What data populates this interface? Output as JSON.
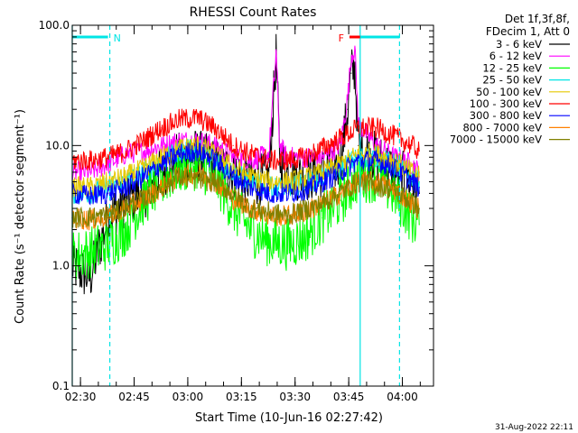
{
  "chart_data": {
    "type": "line",
    "title": "RHESSI Count Rates",
    "xlabel": "Start Time (10-Jun-16 02:27:42)",
    "ylabel": "Count Rate (s⁻¹ detector segment⁻¹)",
    "yscale": "log",
    "ylim": [
      0.1,
      100.0
    ],
    "xlim_minutes_after_0227_42": [
      0,
      101
    ],
    "y_ticks": [
      "100.0",
      "10.0",
      "1.0",
      "0.1"
    ],
    "x_ticks": [
      "02:30",
      "02:45",
      "03:00",
      "03:15",
      "03:30",
      "03:45",
      "04:00"
    ],
    "x_tick_minutes": [
      2.3,
      17.3,
      32.3,
      47.3,
      62.3,
      77.3,
      92.3
    ],
    "legend_position": "right",
    "legend_header": [
      "Det 1f,3f,8f,",
      "FDecim 1, Att 0"
    ],
    "series": [
      {
        "name": "3 - 6 keV",
        "color": "#000000",
        "x": [
          0,
          5,
          10,
          15,
          20,
          25,
          30,
          35,
          40,
          45,
          50,
          55,
          57,
          58,
          60,
          65,
          70,
          75,
          77,
          78,
          79,
          80,
          85,
          90,
          95,
          97
        ],
        "y": [
          1.0,
          0.8,
          2.5,
          3.5,
          4.0,
          6.0,
          8.0,
          8.5,
          7.0,
          6.0,
          5.0,
          5.5,
          55,
          8,
          6,
          5.5,
          6,
          7,
          20,
          40,
          45,
          10,
          8,
          6,
          5,
          4
        ]
      },
      {
        "name": "6 - 12 keV",
        "color": "#ff00ff",
        "x": [
          0,
          5,
          10,
          15,
          20,
          25,
          30,
          35,
          40,
          45,
          50,
          55,
          57,
          58,
          60,
          65,
          70,
          75,
          77,
          78,
          79,
          80,
          85,
          90,
          95,
          97
        ],
        "y": [
          6.0,
          6.0,
          7.0,
          8.5,
          9.0,
          10.0,
          11.0,
          11.0,
          10.0,
          8.0,
          7.5,
          8.5,
          60,
          10,
          8,
          8,
          8,
          10,
          25,
          55,
          65,
          15,
          10,
          8,
          7,
          6
        ]
      },
      {
        "name": "12 - 25 keV",
        "color": "#00ff00",
        "x": [
          0,
          5,
          10,
          15,
          20,
          25,
          30,
          35,
          40,
          45,
          50,
          55,
          60,
          65,
          70,
          75,
          80,
          85,
          90,
          95,
          97
        ],
        "y": [
          1.2,
          1.3,
          1.5,
          2.0,
          3.5,
          5.0,
          6.5,
          7.0,
          5.5,
          3.0,
          2.0,
          1.6,
          1.5,
          1.7,
          2.5,
          3.5,
          5.5,
          5.5,
          4.0,
          2.5,
          2.2
        ]
      },
      {
        "name": "25 - 50 keV",
        "color": "#00e5e5",
        "x": [
          0,
          5,
          10,
          15,
          20,
          25,
          30,
          35,
          40,
          45,
          50,
          55,
          60,
          65,
          70,
          75,
          80,
          85,
          90,
          95,
          97
        ],
        "y": [
          4.0,
          4.0,
          4.5,
          5.0,
          6.0,
          7.5,
          9.0,
          9.5,
          8.0,
          6.0,
          5.0,
          4.5,
          4.5,
          4.8,
          5.5,
          6.5,
          8.0,
          8.0,
          7.0,
          5.5,
          5.0
        ]
      },
      {
        "name": "50 - 100 keV",
        "color": "#e5c800",
        "x": [
          0,
          5,
          10,
          15,
          20,
          25,
          30,
          35,
          40,
          45,
          50,
          55,
          60,
          65,
          70,
          75,
          80,
          85,
          90,
          95,
          97
        ],
        "y": [
          4.5,
          4.5,
          5.0,
          5.5,
          6.5,
          8.0,
          9.5,
          10.0,
          8.5,
          6.5,
          5.5,
          5.0,
          5.0,
          5.3,
          6.0,
          7.0,
          8.5,
          8.5,
          7.5,
          6.0,
          5.5
        ]
      },
      {
        "name": "100 - 300 keV",
        "color": "#ff0000",
        "x": [
          0,
          5,
          10,
          15,
          20,
          25,
          30,
          35,
          40,
          45,
          50,
          55,
          60,
          65,
          70,
          75,
          80,
          85,
          90,
          95,
          97
        ],
        "y": [
          7.5,
          7.5,
          8.0,
          9.0,
          11.0,
          14.0,
          16.5,
          17.0,
          14.0,
          10.0,
          8.5,
          7.5,
          7.5,
          8.0,
          9.5,
          11.5,
          14.0,
          14.0,
          12.0,
          10.0,
          9.0
        ]
      },
      {
        "name": "300 - 800 keV",
        "color": "#0000ff",
        "x": [
          0,
          5,
          10,
          15,
          20,
          25,
          30,
          35,
          40,
          45,
          50,
          55,
          60,
          65,
          70,
          75,
          80,
          85,
          90,
          95,
          97
        ],
        "y": [
          4.0,
          3.8,
          4.0,
          4.5,
          5.5,
          7.0,
          8.5,
          9.0,
          7.5,
          5.5,
          4.5,
          4.0,
          4.0,
          4.3,
          5.0,
          6.0,
          7.5,
          7.5,
          6.5,
          5.0,
          4.5
        ]
      },
      {
        "name": "800 - 7000 keV",
        "color": "#ff8000",
        "x": [
          0,
          5,
          10,
          15,
          20,
          25,
          30,
          35,
          40,
          45,
          50,
          55,
          60,
          65,
          70,
          75,
          80,
          85,
          90,
          95,
          97
        ],
        "y": [
          2.5,
          2.4,
          2.6,
          3.0,
          3.6,
          4.5,
          5.5,
          6.0,
          5.0,
          3.6,
          3.0,
          2.6,
          2.6,
          2.8,
          3.3,
          4.0,
          5.0,
          5.0,
          4.3,
          3.3,
          3.0
        ]
      },
      {
        "name": "7000 - 15000 keV",
        "color": "#808000",
        "x": [
          0,
          10,
          20,
          30,
          40,
          50,
          60,
          70,
          80,
          90,
          97
        ],
        "y": [
          2.5,
          2.6,
          3.6,
          5.5,
          5.0,
          3.0,
          2.6,
          3.3,
          5.0,
          4.3,
          3.0
        ]
      }
    ],
    "annotations": [
      {
        "label": "N",
        "color": "#00e5e5",
        "x_start": 0,
        "x_end": 10
      },
      {
        "label": "F",
        "color": "#ff0000",
        "x_start": 77.5,
        "x_end": 80.5
      },
      {
        "label": "",
        "color": "#00e5e5",
        "x_start": 80.5,
        "x_end": 91.5
      }
    ],
    "vlines": [
      {
        "x": 0,
        "style": "solid",
        "color": "#00e5e5"
      },
      {
        "x": 10.5,
        "style": "dashed",
        "color": "#00e5e5"
      },
      {
        "x": 80.5,
        "style": "solid",
        "color": "#00e5e5"
      },
      {
        "x": 91.5,
        "style": "dashed",
        "color": "#00e5e5"
      }
    ]
  },
  "footer_timestamp": "31-Aug-2022 22:11"
}
